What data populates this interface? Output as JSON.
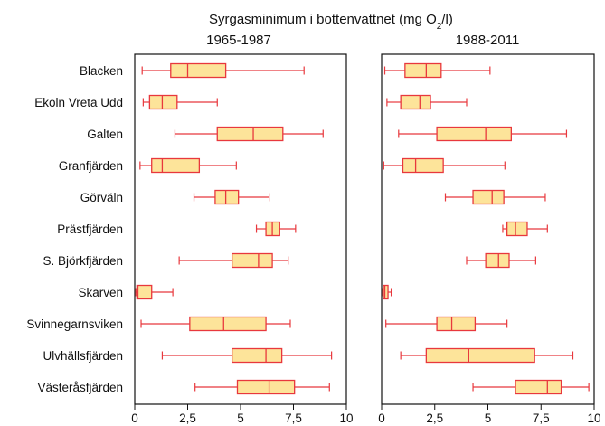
{
  "chart_data": {
    "type": "boxplot",
    "title_main": "Syrgasminimum i bottenvattnet (mg O",
    "title_sub": "2",
    "title_end": "/l)",
    "panels": [
      {
        "label": "1965-1987"
      },
      {
        "label": "1988-2011"
      }
    ],
    "xlim": [
      0,
      10
    ],
    "xticks": [
      0,
      2.5,
      5,
      7.5,
      10
    ],
    "xtick_labels": [
      "0",
      "2,5",
      "5",
      "7,5",
      "10"
    ],
    "categories": [
      "Blacken",
      "Ekoln Vreta Udd",
      "Galten",
      "Granfjärden",
      "Görväln",
      "Prästfjärden",
      "S. Björkfjärden",
      "Skarven",
      "Svinnegarnsviken",
      "Ulvhällsfjärden",
      "Västeråsfjärden"
    ],
    "series": [
      {
        "panel": "1965-1987",
        "boxes": [
          [
            0.35,
            1.7,
            2.5,
            4.3,
            8.0
          ],
          [
            0.4,
            0.7,
            1.3,
            2.0,
            3.9
          ],
          [
            1.9,
            3.9,
            5.6,
            7.0,
            8.9
          ],
          [
            0.25,
            0.8,
            1.3,
            3.05,
            4.8
          ],
          [
            2.8,
            3.8,
            4.3,
            4.9,
            6.35
          ],
          [
            5.75,
            6.2,
            6.5,
            6.85,
            7.6
          ],
          [
            2.1,
            4.6,
            5.85,
            6.5,
            7.25
          ],
          [
            0.05,
            0.1,
            0.15,
            0.8,
            1.8
          ],
          [
            0.3,
            2.6,
            4.2,
            6.2,
            7.35
          ],
          [
            1.3,
            4.6,
            6.2,
            6.95,
            9.3
          ],
          [
            2.85,
            4.85,
            6.35,
            7.55,
            9.2
          ]
        ]
      },
      {
        "panel": "1988-2011",
        "boxes": [
          [
            0.15,
            1.1,
            2.1,
            2.8,
            5.1
          ],
          [
            0.25,
            0.9,
            1.8,
            2.3,
            4.0
          ],
          [
            0.8,
            2.6,
            4.9,
            6.1,
            8.7
          ],
          [
            0.1,
            1.0,
            1.6,
            2.9,
            5.8
          ],
          [
            3.0,
            4.3,
            5.2,
            5.75,
            7.7
          ],
          [
            5.7,
            5.9,
            6.3,
            6.85,
            7.8
          ],
          [
            4.0,
            4.9,
            5.5,
            6.0,
            7.25
          ],
          [
            0.05,
            0.08,
            0.15,
            0.3,
            0.45
          ],
          [
            0.2,
            2.6,
            3.3,
            4.4,
            5.9
          ],
          [
            0.9,
            2.1,
            4.1,
            7.2,
            9.0
          ],
          [
            4.3,
            6.3,
            7.8,
            8.45,
            9.75
          ]
        ]
      }
    ],
    "colors": {
      "box_fill": "#fde49a",
      "box_stroke": "#e8383d",
      "frame": "#111111"
    },
    "grid": false
  }
}
